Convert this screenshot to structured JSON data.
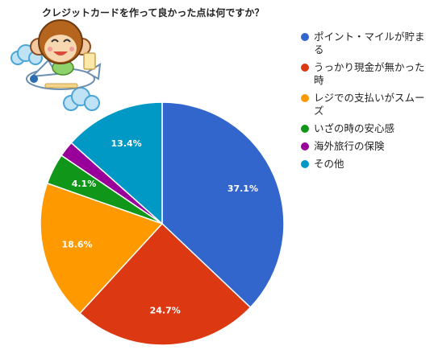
{
  "chart_data": {
    "type": "pie",
    "title": "クレジットカードを作って良かった点は何ですか？",
    "categories": [
      "ポイント・マイルが貯まる",
      "うっかり現金が無かった時",
      "レジでの支払いがスムーズ",
      "いざの時の安心感",
      "海外旅行の保険",
      "その他"
    ],
    "values": [
      37.1,
      24.7,
      18.6,
      4.1,
      2.1,
      13.4
    ],
    "data_labels": [
      "37.1%",
      "24.7%",
      "18.6%",
      "4.1%",
      "",
      "13.4%"
    ],
    "colors": [
      "#3366cc",
      "#dc3912",
      "#ff9900",
      "#109618",
      "#990099",
      "#0099c6"
    ],
    "legend_position": "right"
  }
}
